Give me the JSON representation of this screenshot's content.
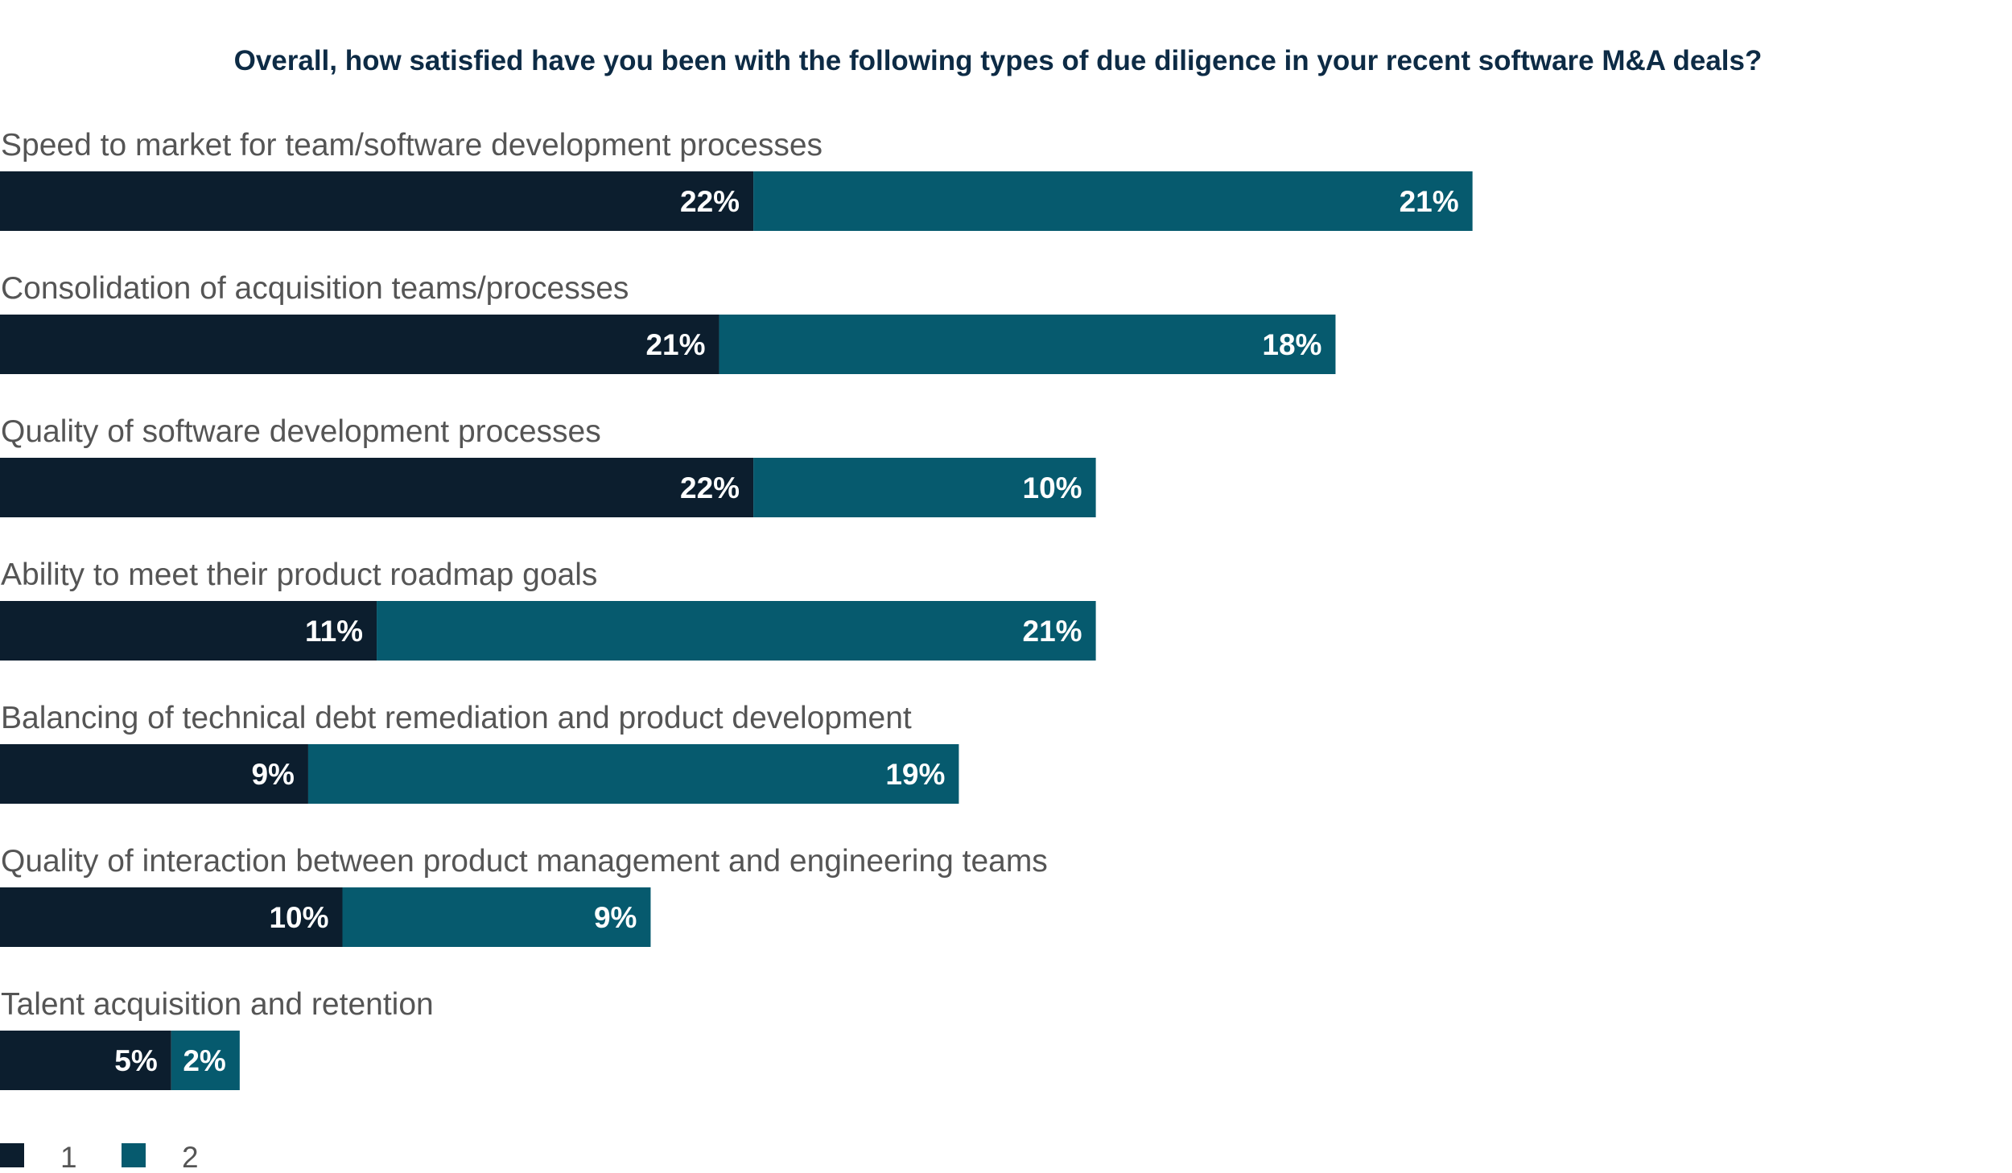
{
  "chart_data": {
    "type": "bar",
    "orientation": "horizontal",
    "stacked": true,
    "title": "Overall, how satisfied have you been with the following types of due diligence in your recent software M&A deals?",
    "xlabel": "",
    "ylabel": "",
    "xlim": [
      0,
      60
    ],
    "grid": false,
    "legend_position": "bottom-left",
    "categories": [
      "Speed to market for team/software development processes",
      "Consolidation of acquisition teams/processes",
      "Quality of software development processes",
      "Ability to meet their product roadmap goals",
      "Balancing of technical debt remediation and product development",
      "Quality of interaction between product management and engineering teams",
      "Talent acquisition and retention"
    ],
    "series": [
      {
        "name": "1",
        "color": "#0c1e2e",
        "values": [
          22,
          21,
          22,
          11,
          9,
          10,
          5
        ],
        "labels": [
          "22%",
          "21%",
          "22%",
          "11%",
          "9%",
          "10%",
          "5%"
        ]
      },
      {
        "name": "2",
        "color": "#065a6e",
        "values": [
          21,
          18,
          10,
          21,
          19,
          9,
          2
        ],
        "labels": [
          "21%",
          "18%",
          "10%",
          "21%",
          "19%",
          "9%",
          "2%"
        ]
      }
    ]
  }
}
